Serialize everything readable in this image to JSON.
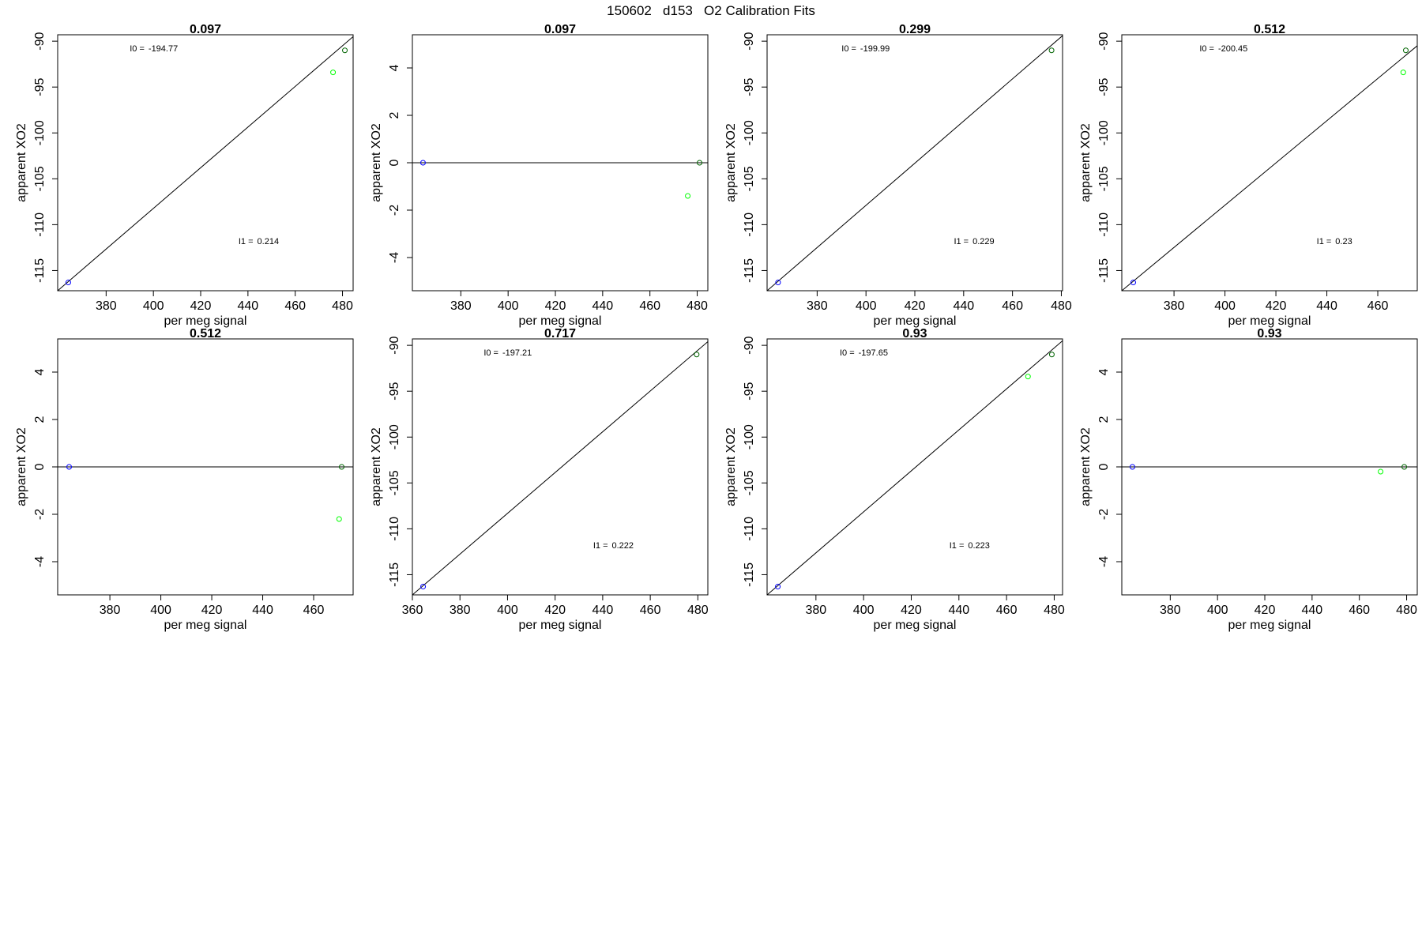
{
  "figure_title": "150602   d153   O2 Calibration Fits",
  "colors": {
    "frame": "#000000",
    "fit_line": "#000000",
    "blue_point": "#0000ff",
    "green_point": "#00ff00",
    "dark_green_point": "#006400"
  },
  "chart_data": [
    {
      "type": "scatter",
      "title": "0.097",
      "xlabel": "per meg signal",
      "ylabel": "apparent XO2",
      "xlim": [
        359.5,
        484.5
      ],
      "ylim": [
        -117.2,
        -89.3
      ],
      "xticks": [
        380,
        400,
        420,
        440,
        460,
        480
      ],
      "yticks": [
        -115,
        -110,
        -105,
        -100,
        -95,
        -90
      ],
      "points": [
        {
          "x": 364,
          "y": -116.3,
          "color": "blue"
        },
        {
          "x": 476,
          "y": -93.4,
          "color": "green"
        },
        {
          "x": 481,
          "y": -91.0,
          "color": "dark_green"
        }
      ],
      "fit_line": [
        [
          359.5,
          -117.2
        ],
        [
          484.5,
          -89.5
        ]
      ],
      "annotations": [
        {
          "label": "I0 =",
          "value": "-194.77",
          "ax": 390,
          "ay": -91.1
        },
        {
          "label": "I1 =",
          "value": "0.214",
          "ax": 436,
          "ay": -112.1
        }
      ]
    },
    {
      "type": "scatter",
      "title": "0.097",
      "xlabel": "per meg signal",
      "ylabel": "apparent XO2",
      "xlim": [
        359.5,
        484.5
      ],
      "ylim": [
        -5.4,
        5.4
      ],
      "xticks": [
        380,
        400,
        420,
        440,
        460,
        480
      ],
      "yticks": [
        -4,
        -2,
        0,
        2,
        4
      ],
      "points": [
        {
          "x": 364,
          "y": 0,
          "color": "blue"
        },
        {
          "x": 476,
          "y": -1.4,
          "color": "green"
        },
        {
          "x": 481,
          "y": 0,
          "color": "dark_green"
        }
      ],
      "fit_line": [
        [
          359.5,
          0
        ],
        [
          484.5,
          0
        ]
      ],
      "annotations": []
    },
    {
      "type": "scatter",
      "title": "0.299",
      "xlabel": "per meg signal",
      "ylabel": "apparent XO2",
      "xlim": [
        359.5,
        480.5
      ],
      "ylim": [
        -117.2,
        -89.3
      ],
      "xticks": [
        380,
        400,
        420,
        440,
        460,
        480
      ],
      "yticks": [
        -115,
        -110,
        -105,
        -100,
        -95,
        -90
      ],
      "points": [
        {
          "x": 364,
          "y": -116.3,
          "color": "blue"
        },
        {
          "x": 476,
          "y": -91.0,
          "color": "dark_green"
        }
      ],
      "fit_line": [
        [
          359.5,
          -117.2
        ],
        [
          480.5,
          -89.4
        ]
      ],
      "annotations": [
        {
          "label": "I0 =",
          "value": "-199.99",
          "ax": 390,
          "ay": -91.1
        },
        {
          "label": "I1 =",
          "value": "0.229",
          "ax": 436,
          "ay": -112.1
        }
      ]
    },
    {
      "type": "scatter",
      "title": "0.512",
      "xlabel": "per meg signal",
      "ylabel": "apparent XO2",
      "xlim": [
        359.5,
        475.5
      ],
      "ylim": [
        -117.2,
        -89.3
      ],
      "xticks": [
        380,
        400,
        420,
        440,
        460
      ],
      "yticks": [
        -115,
        -110,
        -105,
        -100,
        -95,
        -90
      ],
      "points": [
        {
          "x": 364,
          "y": -116.3,
          "color": "blue"
        },
        {
          "x": 470,
          "y": -93.4,
          "color": "green"
        },
        {
          "x": 471,
          "y": -91.0,
          "color": "dark_green"
        }
      ],
      "fit_line": [
        [
          359.5,
          -117.2
        ],
        [
          475.5,
          -90.5
        ]
      ],
      "annotations": [
        {
          "label": "I0 =",
          "value": "-200.45",
          "ax": 390,
          "ay": -91.1
        },
        {
          "label": "I1 =",
          "value": "0.23",
          "ax": 436,
          "ay": -112.1
        }
      ]
    },
    {
      "type": "scatter",
      "title": "0.512",
      "xlabel": "per meg signal",
      "ylabel": "apparent XO2",
      "xlim": [
        359.5,
        475.5
      ],
      "ylim": [
        -5.4,
        5.4
      ],
      "xticks": [
        380,
        400,
        420,
        440,
        460
      ],
      "yticks": [
        -4,
        -2,
        0,
        2,
        4
      ],
      "points": [
        {
          "x": 364,
          "y": 0,
          "color": "blue"
        },
        {
          "x": 470,
          "y": -2.2,
          "color": "green"
        },
        {
          "x": 471,
          "y": 0,
          "color": "dark_green"
        }
      ],
      "fit_line": [
        [
          359.5,
          0
        ],
        [
          475.5,
          0
        ]
      ],
      "annotations": []
    },
    {
      "type": "scatter",
      "title": "0.717",
      "xlabel": "per meg signal",
      "ylabel": "apparent XO2",
      "xlim": [
        360,
        484.2
      ],
      "ylim": [
        -117.2,
        -89.3
      ],
      "xticks": [
        360,
        380,
        400,
        420,
        440,
        460,
        480
      ],
      "yticks": [
        -115,
        -110,
        -105,
        -100,
        -95,
        -90
      ],
      "points": [
        {
          "x": 364.5,
          "y": -116.3,
          "color": "blue"
        },
        {
          "x": 479.5,
          "y": -91.0,
          "color": "dark_green"
        }
      ],
      "fit_line": [
        [
          360,
          -117.2
        ],
        [
          484.2,
          -89.6
        ]
      ],
      "annotations": [
        {
          "label": "I0 =",
          "value": "-197.21",
          "ax": 390,
          "ay": -91.1
        },
        {
          "label": "I1 =",
          "value": "0.222",
          "ax": 436,
          "ay": -112.1
        }
      ]
    },
    {
      "type": "scatter",
      "title": "0.93",
      "xlabel": "per meg signal",
      "ylabel": "apparent XO2",
      "xlim": [
        359.5,
        483.5
      ],
      "ylim": [
        -117.2,
        -89.3
      ],
      "xticks": [
        380,
        400,
        420,
        440,
        460,
        480
      ],
      "yticks": [
        -115,
        -110,
        -105,
        -100,
        -95,
        -90
      ],
      "points": [
        {
          "x": 364,
          "y": -116.3,
          "color": "blue"
        },
        {
          "x": 469,
          "y": -93.4,
          "color": "green"
        },
        {
          "x": 479,
          "y": -91.0,
          "color": "dark_green"
        }
      ],
      "fit_line": [
        [
          359.5,
          -117.2
        ],
        [
          483.5,
          -89.5
        ]
      ],
      "annotations": [
        {
          "label": "I0 =",
          "value": "-197.65",
          "ax": 390,
          "ay": -91.1
        },
        {
          "label": "I1 =",
          "value": "0.223",
          "ax": 436,
          "ay": -112.1
        }
      ]
    },
    {
      "type": "scatter",
      "title": "0.93",
      "xlabel": "per meg signal",
      "ylabel": "apparent XO2",
      "xlim": [
        359.5,
        484.5
      ],
      "ylim": [
        -5.4,
        5.4
      ],
      "xticks": [
        380,
        400,
        420,
        440,
        460,
        480
      ],
      "yticks": [
        -4,
        -2,
        0,
        2,
        4
      ],
      "points": [
        {
          "x": 364,
          "y": 0,
          "color": "blue"
        },
        {
          "x": 469,
          "y": -0.2,
          "color": "green"
        },
        {
          "x": 479,
          "y": 0,
          "color": "dark_green"
        }
      ],
      "fit_line": [
        [
          359.5,
          0
        ],
        [
          484.5,
          0
        ]
      ],
      "annotations": []
    }
  ]
}
